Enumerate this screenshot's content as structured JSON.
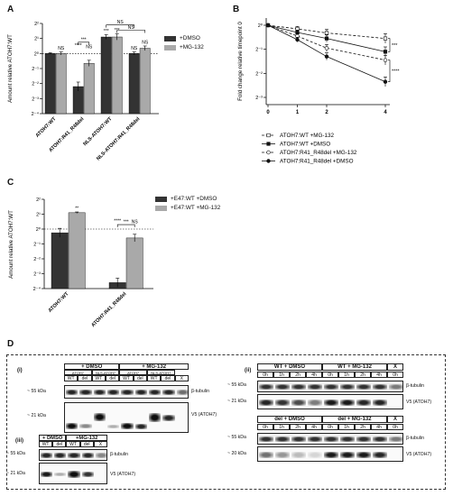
{
  "panels": {
    "A": {
      "label": "A",
      "chart_data": {
        "type": "bar",
        "ylabel": "Amount relative ATOH7:WT",
        "yticks": [
          "2²",
          "2¹",
          "2⁰",
          "2⁻¹",
          "2⁻²",
          "2⁻³",
          "2⁻⁴"
        ],
        "ylim_log2": [
          -4,
          2
        ],
        "baseline_log2": -4,
        "categories": [
          "ATOH7:WT",
          "ATOH7:R41_R48del",
          "NLS-ATOH7:WT",
          "NLS-ATOH7:R41_R48del"
        ],
        "series": [
          {
            "name": "+DMSO",
            "color": "#333333",
            "values_log2": [
              0.0,
              -2.2,
              1.1,
              0.0
            ],
            "errors": [
              0.05,
              0.3,
              0.15,
              0.1
            ]
          },
          {
            "name": "+MG-132",
            "color": "#a9a9a9",
            "values_log2": [
              0.0,
              -0.65,
              1.1,
              0.35
            ],
            "errors": [
              0.1,
              0.2,
              0.2,
              0.15
            ]
          }
        ],
        "bar_annotations": [
          [
            "",
            "NS"
          ],
          [
            "****",
            "NS"
          ],
          [
            "***",
            "***"
          ],
          [
            "NS",
            "NS"
          ]
        ],
        "bracket_labels": [
          "***",
          "NS",
          "NS"
        ],
        "legend": [
          "+DMSO",
          "+MG-132"
        ]
      }
    },
    "B": {
      "label": "B",
      "chart_data": {
        "type": "line",
        "ylabel": "Fold change relative timepoint 0",
        "yticks": [
          "2⁰",
          "2⁻¹",
          "2⁻²",
          "2⁻³"
        ],
        "x": [
          0,
          1,
          2,
          4
        ],
        "xticks": [
          "0",
          "1",
          "2",
          "4"
        ],
        "ylim_log2": [
          -3.3,
          0.3
        ],
        "series": [
          {
            "name": "ATOH7:WT +MG-132",
            "dashed": true,
            "marker": "square",
            "values_log2": [
              0,
              -0.15,
              -0.32,
              -0.55
            ]
          },
          {
            "name": "ATOH7:WT +DMSO",
            "dashed": false,
            "marker": "square",
            "values_log2": [
              0,
              -0.3,
              -0.55,
              -1.1
            ]
          },
          {
            "name": "ATOH7:R41_R48del +MG-132",
            "dashed": true,
            "marker": "circle",
            "values_log2": [
              0,
              -0.45,
              -0.95,
              -1.45
            ]
          },
          {
            "name": "ATOH7:R41_R48del +DMSO",
            "dashed": false,
            "marker": "circle",
            "values_log2": [
              0,
              -0.6,
              -1.3,
              -2.35
            ]
          }
        ],
        "sig_labels": [
          "***",
          "****"
        ]
      }
    },
    "C": {
      "label": "C",
      "chart_data": {
        "type": "bar",
        "ylabel": "Amount relative ATOH7:WT",
        "yticks": [
          "2²",
          "2¹",
          "2⁰",
          "2⁻¹",
          "2⁻²",
          "2⁻³",
          "2⁻⁴"
        ],
        "ylim_log2": [
          -4,
          2
        ],
        "categories": [
          "ATOH7:WT",
          "ATOH7:R41_R48del"
        ],
        "series": [
          {
            "name": "+E47:WT +DMSO",
            "color": "#333333",
            "values_log2": [
              -0.25,
              -3.6
            ],
            "errors": [
              0.3,
              0.3
            ]
          },
          {
            "name": "+E47:WT +MG-132",
            "color": "#a9a9a9",
            "values_log2": [
              1.1,
              -0.6
            ],
            "errors": [
              0.05,
              0.25
            ]
          }
        ],
        "bar_annotations": [
          [
            "",
            "**"
          ],
          [
            "****",
            "NS"
          ]
        ],
        "bracket_labels": [
          "***"
        ],
        "legend": [
          "+E47:WT +DMSO",
          "+E47:WT +MG-132"
        ]
      }
    },
    "D": {
      "label": "D",
      "blot_i": {
        "tag": "(i)",
        "groups": [
          "+ DMSO",
          "+ MG-132"
        ],
        "subgroups": [
          "ATOH7",
          "NLS-ATOH7",
          "ATOH7",
          "NLS-ATOH7"
        ],
        "lanes": [
          "WT",
          "del",
          "WT",
          "del",
          "WT",
          "del",
          "WT",
          "del",
          "X"
        ],
        "mw": [
          "~ 55 kDa",
          "~ 21 kDa"
        ],
        "bands": [
          "β-tubulin",
          "V5 (ATOH7)"
        ]
      },
      "blot_ii": {
        "tag": "(ii)",
        "top_groups": [
          "WT + DMSO",
          "WT + MG-132",
          "X"
        ],
        "bottom_groups": [
          "del + DMSO",
          "del + MG-132",
          "X"
        ],
        "lanes": [
          "0h",
          "1h",
          "2h",
          "4h",
          "0h",
          "1h",
          "2h",
          "4h",
          "0h"
        ],
        "mw_top": [
          "~ 55 kDa",
          "~ 21 kDa"
        ],
        "mw_bottom": [
          "~ 55 kDa",
          "~ 20 kDa"
        ],
        "bands": [
          "β-tubulin",
          "V5 (ATOH7)"
        ]
      },
      "blot_iii": {
        "tag": "(iii)",
        "groups": [
          "+ DMSO",
          "+MG-132"
        ],
        "lanes": [
          "WT",
          "del",
          "WT",
          "del",
          "X"
        ],
        "mw": [
          "~ 55 kDa",
          "~ 21 kDa"
        ],
        "bands": [
          "β-tubulin",
          "V5 (ATOH7)"
        ]
      }
    }
  }
}
